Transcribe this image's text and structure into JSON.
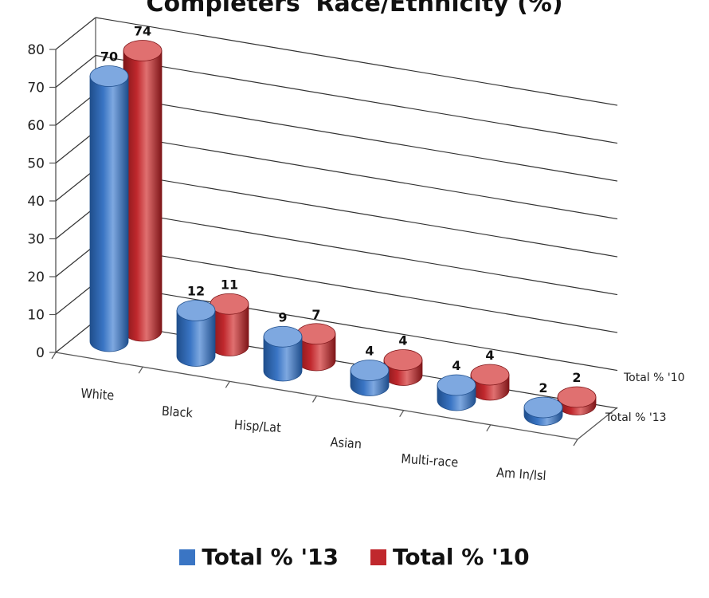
{
  "chart_data": {
    "type": "bar",
    "title": "Completers' Race/Ethnicity (%)",
    "categories": [
      "White",
      "Black",
      "Hisp/Lat",
      "Asian",
      "Multi-race",
      "Am In/Isl"
    ],
    "series": [
      {
        "name": "Total % '13",
        "values": [
          70,
          12,
          9,
          4,
          4,
          2
        ],
        "color": "#3A75C4",
        "dark": "#1F4E8C",
        "top": "#7EA8E0"
      },
      {
        "name": "Total % '10",
        "values": [
          74,
          11,
          7,
          4,
          4,
          2
        ],
        "color": "#C0282D",
        "dark": "#7E1518",
        "top": "#E07070"
      }
    ],
    "ylim": [
      0,
      80
    ],
    "yticks": [
      0,
      10,
      20,
      30,
      40,
      50,
      60,
      70,
      80
    ],
    "depth_labels": [
      "Total % '10",
      "Total % '13"
    ],
    "grid": true,
    "legend_position": "bottom"
  }
}
